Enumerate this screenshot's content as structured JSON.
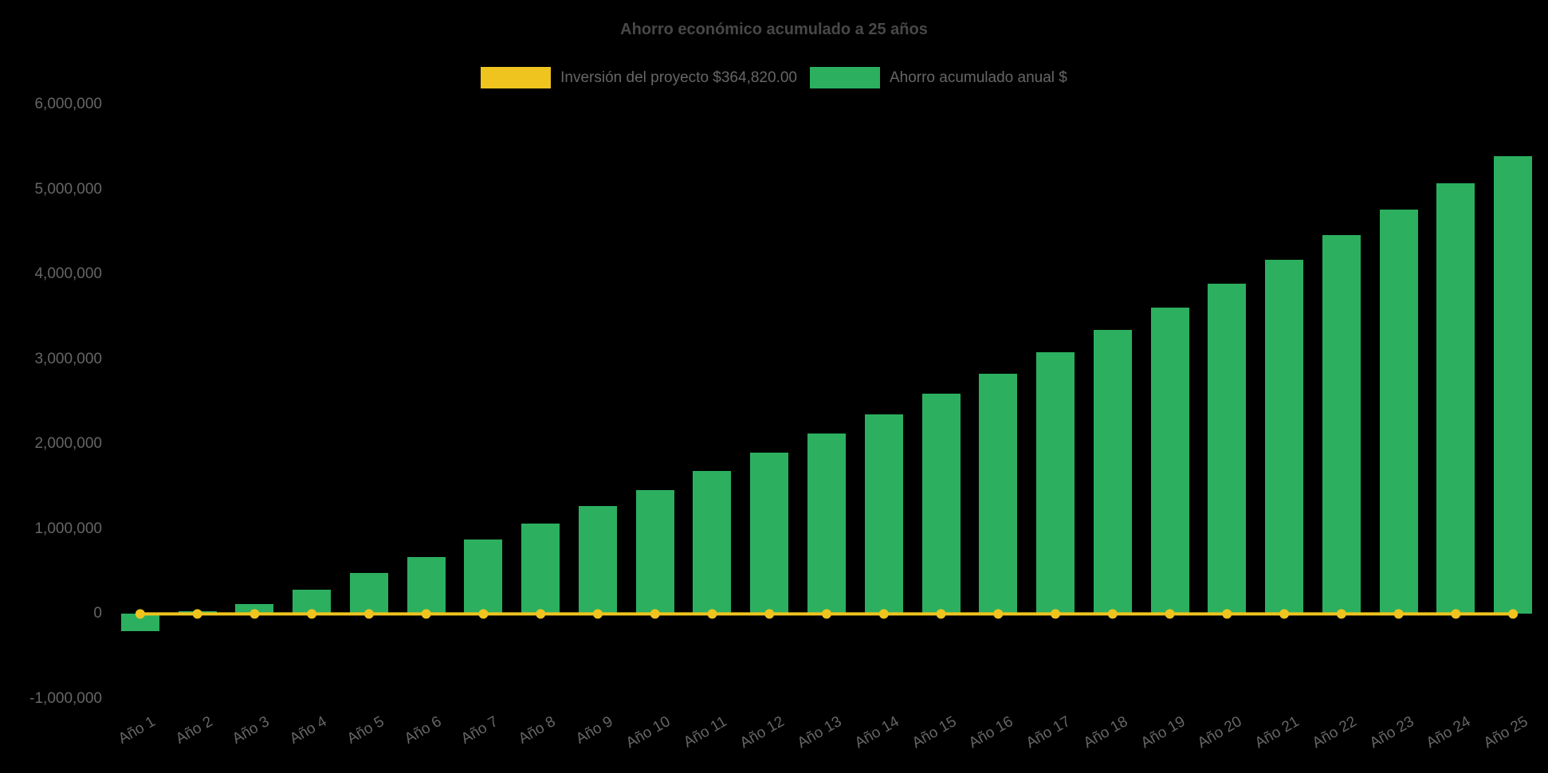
{
  "title": "Ahorro económico acumulado a 25 años",
  "colors": {
    "background": "#000000",
    "title_text": "#484848",
    "axis_text": "#666666",
    "investment_line": "#F0C41F",
    "savings_bar": "#2CB05F"
  },
  "legend": {
    "items": [
      {
        "label": "Inversión del proyecto $364,820.00",
        "color": "#F0C41F"
      },
      {
        "label": "Ahorro acumulado anual $",
        "color": "#2CB05F"
      }
    ]
  },
  "chart_data": {
    "type": "bar",
    "title": "Ahorro económico acumulado a 25 años",
    "categories": [
      "Año 1",
      "Año 2",
      "Año 3",
      "Año 4",
      "Año 5",
      "Año 6",
      "Año 7",
      "Año 8",
      "Año 9",
      "Año 10",
      "Año 11",
      "Año 12",
      "Año 13",
      "Año 14",
      "Año 15",
      "Año 16",
      "Año 17",
      "Año 18",
      "Año 19",
      "Año 20",
      "Año 21",
      "Año 22",
      "Año 23",
      "Año 24",
      "Año 25"
    ],
    "series": [
      {
        "name": "Inversión del proyecto $364,820.00",
        "type": "line",
        "color": "#F0C41F",
        "values": [
          0,
          0,
          0,
          0,
          0,
          0,
          0,
          0,
          0,
          0,
          0,
          0,
          0,
          0,
          0,
          0,
          0,
          0,
          0,
          0,
          0,
          0,
          0,
          0,
          0
        ]
      },
      {
        "name": "Ahorro acumulado anual $",
        "type": "bar",
        "color": "#2CB05F",
        "values": [
          -200000,
          30000,
          120000,
          290000,
          480000,
          670000,
          880000,
          1060000,
          1270000,
          1460000,
          1680000,
          1900000,
          2120000,
          2350000,
          2590000,
          2830000,
          3080000,
          3340000,
          3610000,
          3890000,
          4170000,
          4460000,
          4760000,
          5070000,
          5390000
        ]
      }
    ],
    "xlabel": "",
    "ylabel": "",
    "ylim": [
      -1000000,
      6000000
    ],
    "y_ticks": [
      6000000,
      5000000,
      4000000,
      3000000,
      2000000,
      1000000,
      0,
      -1000000
    ],
    "y_tick_labels": [
      "6,000,000",
      "5,000,000",
      "4,000,000",
      "3,000,000",
      "2,000,000",
      "1,000,000",
      "0",
      "-1,000,000"
    ],
    "grid": false,
    "legend_position": "top",
    "x_tick_rotation_deg": 30
  }
}
